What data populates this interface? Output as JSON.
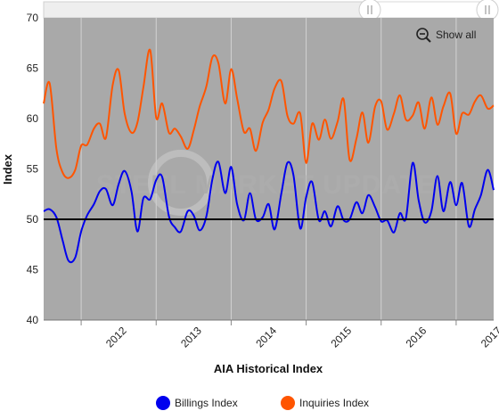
{
  "chart_data": {
    "type": "line",
    "xlabel": "AIA Historical Index",
    "ylabel": "Index",
    "ylim": [
      40,
      70
    ],
    "y_ticks": [
      40,
      45,
      50,
      55,
      60,
      65,
      70
    ],
    "x_ticks": [
      "2012",
      "2013",
      "2014",
      "2015",
      "2016",
      "2017"
    ],
    "xlim": [
      2011.5,
      2017.5
    ],
    "reference_line": 50,
    "grid": "vertical",
    "legend_position": "bottom",
    "series": [
      {
        "name": "Billings Index",
        "color": "#0000ee",
        "x": [
          2011.5,
          2011.58,
          2011.67,
          2011.75,
          2011.83,
          2011.92,
          2012.0,
          2012.08,
          2012.17,
          2012.25,
          2012.33,
          2012.42,
          2012.5,
          2012.58,
          2012.67,
          2012.75,
          2012.83,
          2012.92,
          2013.0,
          2013.08,
          2013.17,
          2013.25,
          2013.33,
          2013.42,
          2013.5,
          2013.58,
          2013.67,
          2013.75,
          2013.83,
          2013.92,
          2014.0,
          2014.08,
          2014.17,
          2014.25,
          2014.33,
          2014.42,
          2014.5,
          2014.58,
          2014.67,
          2014.75,
          2014.83,
          2014.92,
          2015.0,
          2015.08,
          2015.17,
          2015.25,
          2015.33,
          2015.42,
          2015.5,
          2015.58,
          2015.67,
          2015.75,
          2015.83,
          2015.92,
          2016.0,
          2016.08,
          2016.17,
          2016.25,
          2016.33,
          2016.42,
          2016.5,
          2016.58,
          2016.67,
          2016.75,
          2016.83,
          2016.92,
          2017.0,
          2017.08,
          2017.17,
          2017.25,
          2017.33,
          2017.42,
          2017.5
        ],
        "values": [
          50.8,
          51.0,
          50.2,
          48.0,
          45.9,
          46.2,
          48.8,
          50.4,
          51.5,
          52.8,
          53.0,
          51.4,
          53.5,
          54.8,
          52.8,
          48.8,
          52.1,
          52.0,
          53.9,
          54.2,
          50.3,
          49.2,
          48.8,
          50.8,
          50.4,
          48.9,
          50.3,
          54.0,
          55.7,
          52.6,
          55.2,
          51.5,
          49.9,
          52.6,
          50.0,
          50.2,
          51.5,
          49.0,
          52.6,
          55.6,
          54.4,
          49.1,
          52.2,
          53.7,
          49.9,
          50.8,
          49.3,
          51.3,
          49.9,
          50.0,
          51.7,
          50.6,
          52.4,
          51.2,
          49.8,
          49.9,
          48.7,
          50.6,
          50.1,
          55.6,
          51.9,
          49.7,
          50.8,
          54.3,
          50.8,
          53.7,
          51.4,
          53.6,
          49.3,
          51.0,
          52.4,
          54.9,
          52.9
        ]
      },
      {
        "name": "Inquiries Index",
        "color": "#ff5500",
        "x": [
          2011.5,
          2011.58,
          2011.67,
          2011.75,
          2011.83,
          2011.92,
          2012.0,
          2012.08,
          2012.17,
          2012.25,
          2012.33,
          2012.42,
          2012.5,
          2012.58,
          2012.67,
          2012.75,
          2012.83,
          2012.92,
          2013.0,
          2013.08,
          2013.17,
          2013.25,
          2013.33,
          2013.42,
          2013.5,
          2013.58,
          2013.67,
          2013.75,
          2013.83,
          2013.92,
          2014.0,
          2014.08,
          2014.17,
          2014.25,
          2014.33,
          2014.42,
          2014.5,
          2014.58,
          2014.67,
          2014.75,
          2014.83,
          2014.92,
          2015.0,
          2015.08,
          2015.17,
          2015.25,
          2015.33,
          2015.42,
          2015.5,
          2015.58,
          2015.67,
          2015.75,
          2015.83,
          2015.92,
          2016.0,
          2016.08,
          2016.17,
          2016.25,
          2016.33,
          2016.42,
          2016.5,
          2016.58,
          2016.67,
          2016.75,
          2016.83,
          2016.92,
          2017.0,
          2017.08,
          2017.17,
          2017.25,
          2017.33,
          2017.42,
          2017.5
        ],
        "values": [
          61.5,
          63.5,
          57.0,
          54.7,
          54.1,
          54.9,
          57.3,
          57.4,
          59.0,
          59.5,
          58.1,
          63.3,
          64.8,
          60.5,
          58.6,
          59.6,
          63.1,
          66.8,
          60.1,
          61.5,
          58.6,
          59.0,
          58.2,
          57.0,
          58.8,
          61.2,
          63.2,
          66.1,
          65.5,
          61.5,
          64.9,
          62.0,
          58.7,
          59.0,
          56.8,
          59.6,
          60.9,
          63.0,
          63.7,
          60.3,
          59.5,
          60.5,
          55.6,
          59.5,
          57.9,
          59.9,
          58.0,
          59.7,
          61.9,
          55.9,
          58.0,
          60.6,
          57.6,
          61.2,
          61.7,
          58.9,
          60.5,
          62.3,
          59.9,
          60.3,
          61.6,
          59.0,
          62.1,
          59.4,
          61.2,
          62.5,
          58.5,
          60.5,
          60.4,
          61.7,
          62.3,
          61.0,
          61.3
        ]
      }
    ]
  },
  "ui": {
    "show_all_label": "Show all",
    "watermark": "STEEL MARKET UPDATE"
  }
}
